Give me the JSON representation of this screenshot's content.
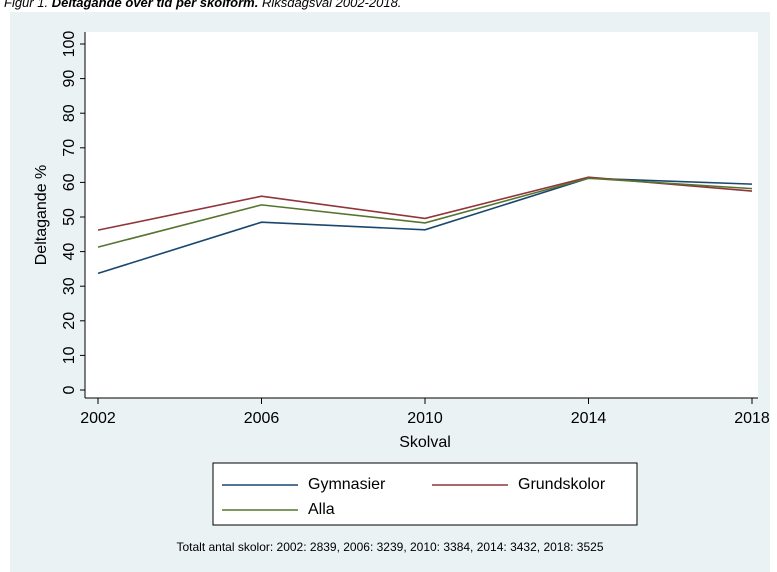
{
  "caption": {
    "label": "Figur 1.",
    "title": "Deltagande över tid per skolform.",
    "subtitle": "Riksdagsval 2002-2018."
  },
  "chart_data": {
    "type": "line",
    "x_label": "Skolval",
    "y_label": "Deltagande %",
    "x": [
      2002,
      2006,
      2010,
      2014,
      2018
    ],
    "xlim": [
      2002,
      2018
    ],
    "xticks": [
      2002,
      2006,
      2010,
      2014,
      2018
    ],
    "ylim": [
      0,
      100
    ],
    "yticks": [
      0,
      10,
      20,
      30,
      40,
      50,
      60,
      70,
      80,
      90,
      100
    ],
    "grid": false,
    "series": [
      {
        "name": "Gymnasier",
        "color": "#1a476f",
        "values": [
          33.7,
          48.5,
          46.3,
          61.2,
          59.5
        ]
      },
      {
        "name": "Grundskolor",
        "color": "#90353b",
        "values": [
          46.2,
          56.0,
          49.6,
          61.5,
          57.5
        ]
      },
      {
        "name": "Alla",
        "color": "#55752f",
        "values": [
          41.3,
          53.5,
          48.3,
          61.2,
          58.2
        ]
      }
    ],
    "note": "Totalt antal skolor: 2002: 2839, 2006: 3239, 2010: 3384, 2014: 3432, 2018: 3525"
  }
}
